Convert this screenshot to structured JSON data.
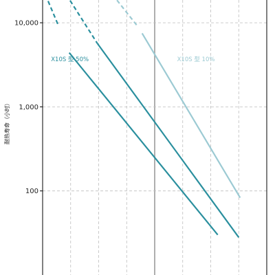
{
  "chart_data": {
    "type": "line",
    "title": "",
    "ylabel": "耐热寿命（小时）",
    "y_scale": "log",
    "ylim": [
      40,
      21500
    ],
    "xlim": [
      0,
      8
    ],
    "y_ticks": [
      {
        "value": 100,
        "label": "100"
      },
      {
        "value": 1000,
        "label": "1,000"
      },
      {
        "value": 10000,
        "label": "10,000"
      }
    ],
    "x_gridlines": [
      1,
      2,
      3,
      4,
      5,
      6,
      7
    ],
    "x_reference_line": 4,
    "grid": true,
    "series": [
      {
        "name": "X10S 型 50%",
        "color": "#2a8f9e",
        "segments": [
          {
            "style": "dashed",
            "points": [
              [
                0.1,
                21500
              ],
              [
                0.55,
                9500
              ]
            ]
          },
          {
            "style": "solid",
            "points": [
              [
                0.95,
                4400
              ],
              [
                6.25,
                30
              ]
            ]
          }
        ]
      },
      {
        "name": "",
        "color": "#2a8f9e",
        "segments": [
          {
            "style": "dashed",
            "points": [
              [
                0.85,
                21500
              ],
              [
                1.95,
                5700
              ]
            ]
          },
          {
            "style": "solid",
            "points": [
              [
                1.95,
                5700
              ],
              [
                7.0,
                28
              ]
            ]
          }
        ]
      },
      {
        "name": "X10S 型 10%",
        "color": "#9ccad3",
        "segments": [
          {
            "style": "dashed",
            "points": [
              [
                2.5,
                21500
              ],
              [
                3.4,
                9000
              ]
            ]
          },
          {
            "style": "solid",
            "points": [
              [
                3.55,
                7500
              ],
              [
                7.05,
                83
              ]
            ]
          }
        ]
      }
    ],
    "annotations": [
      {
        "text": "X10S 型 50%",
        "series": 0,
        "x": 0.3,
        "y": 3500
      },
      {
        "text": "X10S 型 10%",
        "series": 2,
        "x": 4.8,
        "y": 3500
      }
    ]
  }
}
